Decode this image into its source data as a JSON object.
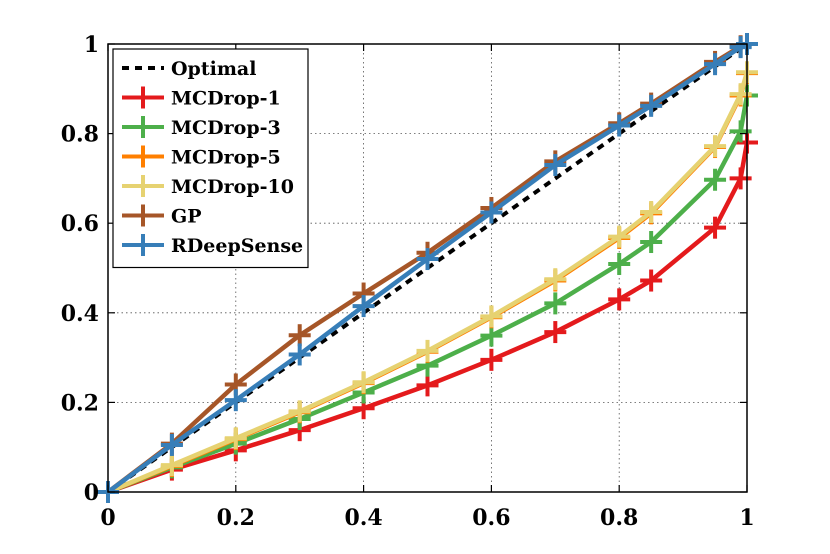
{
  "chart_data": {
    "type": "line",
    "title": "",
    "xlabel": "",
    "ylabel": "",
    "xlim": [
      0,
      1
    ],
    "ylim": [
      0,
      1
    ],
    "xticks": [
      0,
      0.2,
      0.4,
      0.6,
      0.8,
      1
    ],
    "yticks": [
      0,
      0.2,
      0.4,
      0.6,
      0.8,
      1
    ],
    "xtick_labels": [
      "0",
      "0.2",
      "0.4",
      "0.6",
      "0.8",
      "1"
    ],
    "ytick_labels": [
      "0",
      "0.2",
      "0.4",
      "0.6",
      "0.8",
      "1"
    ],
    "grid": true,
    "legend_position": "top-left",
    "series": [
      {
        "name": "Optimal",
        "color": "#000000",
        "style": "dashed",
        "marker": "none",
        "x": [
          0,
          1
        ],
        "y": [
          0,
          1
        ]
      },
      {
        "name": "MCDrop-1",
        "color": "#e41a1c",
        "style": "solid",
        "marker": "plus",
        "x": [
          0,
          0.1,
          0.2,
          0.3,
          0.4,
          0.5,
          0.6,
          0.7,
          0.8,
          0.85,
          0.95,
          0.99,
          1
        ],
        "y": [
          0,
          0.05,
          0.093,
          0.138,
          0.187,
          0.238,
          0.295,
          0.357,
          0.43,
          0.472,
          0.59,
          0.7,
          0.78
        ]
      },
      {
        "name": "MCDrop-3",
        "color": "#4daf4a",
        "style": "solid",
        "marker": "plus",
        "x": [
          0,
          0.1,
          0.2,
          0.3,
          0.4,
          0.5,
          0.6,
          0.7,
          0.8,
          0.85,
          0.95,
          0.99,
          1
        ],
        "y": [
          0,
          0.055,
          0.108,
          0.163,
          0.222,
          0.282,
          0.349,
          0.421,
          0.509,
          0.558,
          0.697,
          0.805,
          0.885
        ]
      },
      {
        "name": "MCDrop-5",
        "color": "#ff7f00",
        "style": "solid",
        "marker": "plus",
        "x": [
          0,
          0.1,
          0.2,
          0.3,
          0.4,
          0.5,
          0.6,
          0.7,
          0.8,
          0.85,
          0.95,
          0.99,
          1
        ],
        "y": [
          0,
          0.058,
          0.118,
          0.178,
          0.243,
          0.313,
          0.39,
          0.472,
          0.567,
          0.622,
          0.77,
          0.885,
          0.935
        ]
      },
      {
        "name": "MCDrop-10",
        "color": "#e6d271",
        "style": "solid",
        "marker": "plus",
        "x": [
          0,
          0.1,
          0.2,
          0.3,
          0.4,
          0.5,
          0.6,
          0.7,
          0.8,
          0.85,
          0.95,
          0.99,
          1
        ],
        "y": [
          0,
          0.06,
          0.12,
          0.18,
          0.245,
          0.315,
          0.392,
          0.475,
          0.57,
          0.625,
          0.772,
          0.888,
          0.937
        ]
      },
      {
        "name": "GP",
        "color": "#a65628",
        "style": "solid",
        "marker": "plus",
        "x": [
          0,
          0.1,
          0.2,
          0.3,
          0.4,
          0.5,
          0.6,
          0.7,
          0.8,
          0.85,
          0.95,
          0.99,
          1
        ],
        "y": [
          0,
          0.108,
          0.24,
          0.35,
          0.443,
          0.534,
          0.634,
          0.738,
          0.823,
          0.867,
          0.96,
          0.995,
          1
        ]
      },
      {
        "name": "RDeepSense",
        "color": "#377eb8",
        "style": "solid",
        "marker": "plus",
        "x": [
          0,
          0.1,
          0.2,
          0.3,
          0.4,
          0.5,
          0.6,
          0.7,
          0.8,
          0.85,
          0.95,
          0.99,
          1
        ],
        "y": [
          0,
          0.105,
          0.205,
          0.307,
          0.415,
          0.52,
          0.624,
          0.73,
          0.818,
          0.862,
          0.955,
          0.993,
          1
        ]
      }
    ]
  }
}
